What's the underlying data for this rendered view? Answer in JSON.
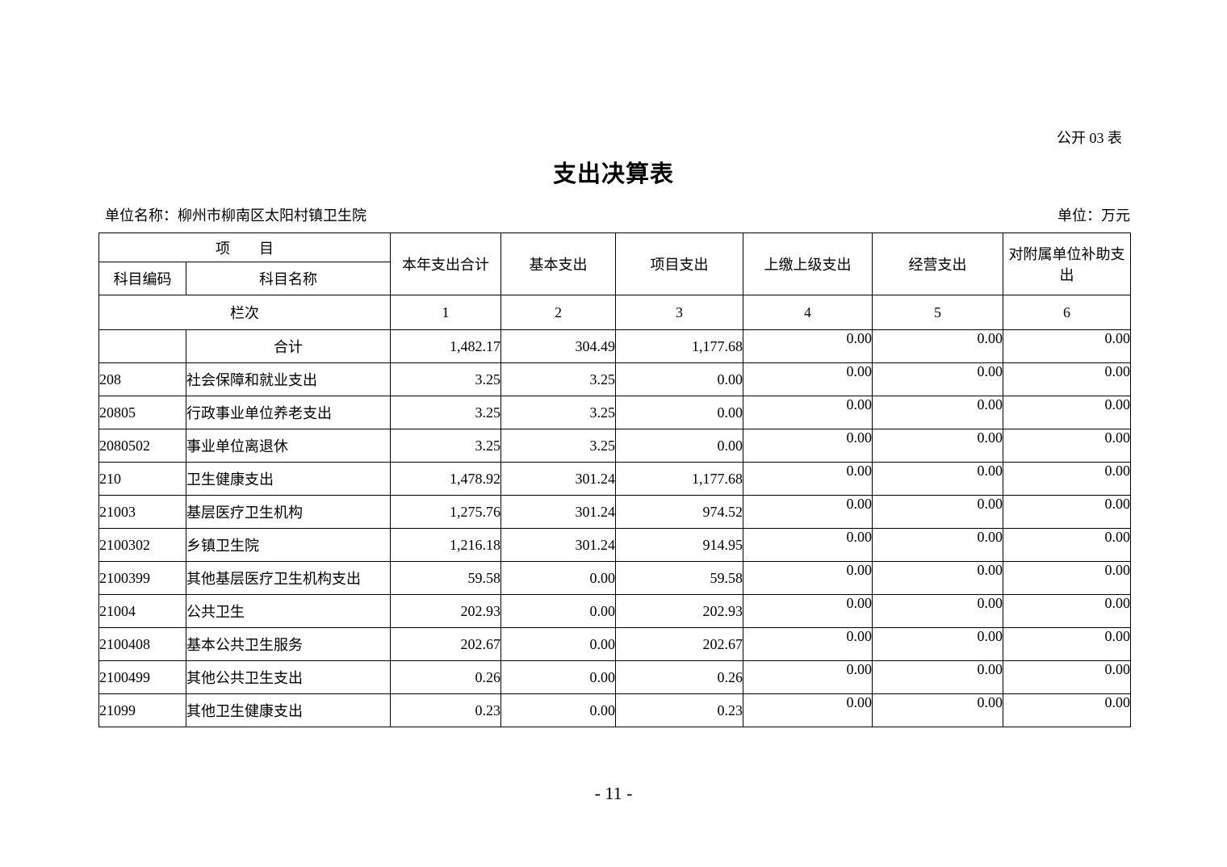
{
  "page": {
    "form_tag": "公开 03 表",
    "title": "支出决算表",
    "unit_name": "单位名称：柳州市柳南区太阳村镇卫生院",
    "unit_currency": "单位：万元",
    "page_number": "- 11 -"
  },
  "table": {
    "header": {
      "item_group": "项　　目",
      "subject_code": "科目编码",
      "subject_name": "科目名称",
      "col_year_total": "本年支出合计",
      "col_basic": "基本支出",
      "col_project": "项目支出",
      "col_upper": "上缴上级支出",
      "col_operating": "经营支出",
      "col_subsidy": "对附属单位补助支出",
      "lanci_label": "栏次",
      "col_nums": [
        "1",
        "2",
        "3",
        "4",
        "5",
        "6"
      ]
    },
    "rows": [
      {
        "code": "",
        "name": "合计",
        "vals": [
          "1,482.17",
          "304.49",
          "1,177.68",
          "0.00",
          "0.00",
          "0.00"
        ],
        "total": true
      },
      {
        "code": "208",
        "name": "社会保障和就业支出",
        "vals": [
          "3.25",
          "3.25",
          "0.00",
          "0.00",
          "0.00",
          "0.00"
        ]
      },
      {
        "code": "20805",
        "name": "行政事业单位养老支出",
        "vals": [
          "3.25",
          "3.25",
          "0.00",
          "0.00",
          "0.00",
          "0.00"
        ]
      },
      {
        "code": "2080502",
        "name": "事业单位离退休",
        "vals": [
          "3.25",
          "3.25",
          "0.00",
          "0.00",
          "0.00",
          "0.00"
        ]
      },
      {
        "code": "210",
        "name": "卫生健康支出",
        "vals": [
          "1,478.92",
          "301.24",
          "1,177.68",
          "0.00",
          "0.00",
          "0.00"
        ]
      },
      {
        "code": "21003",
        "name": "基层医疗卫生机构",
        "vals": [
          "1,275.76",
          "301.24",
          "974.52",
          "0.00",
          "0.00",
          "0.00"
        ]
      },
      {
        "code": "2100302",
        "name": "乡镇卫生院",
        "vals": [
          "1,216.18",
          "301.24",
          "914.95",
          "0.00",
          "0.00",
          "0.00"
        ]
      },
      {
        "code": "2100399",
        "name": "其他基层医疗卫生机构支出",
        "vals": [
          "59.58",
          "0.00",
          "59.58",
          "0.00",
          "0.00",
          "0.00"
        ]
      },
      {
        "code": "21004",
        "name": "公共卫生",
        "vals": [
          "202.93",
          "0.00",
          "202.93",
          "0.00",
          "0.00",
          "0.00"
        ]
      },
      {
        "code": "2100408",
        "name": "基本公共卫生服务",
        "vals": [
          "202.67",
          "0.00",
          "202.67",
          "0.00",
          "0.00",
          "0.00"
        ]
      },
      {
        "code": "2100499",
        "name": "其他公共卫生支出",
        "vals": [
          "0.26",
          "0.00",
          "0.26",
          "0.00",
          "0.00",
          "0.00"
        ]
      },
      {
        "code": "21099",
        "name": "其他卫生健康支出",
        "vals": [
          "0.23",
          "0.00",
          "0.23",
          "0.00",
          "0.00",
          "0.00"
        ]
      }
    ]
  }
}
